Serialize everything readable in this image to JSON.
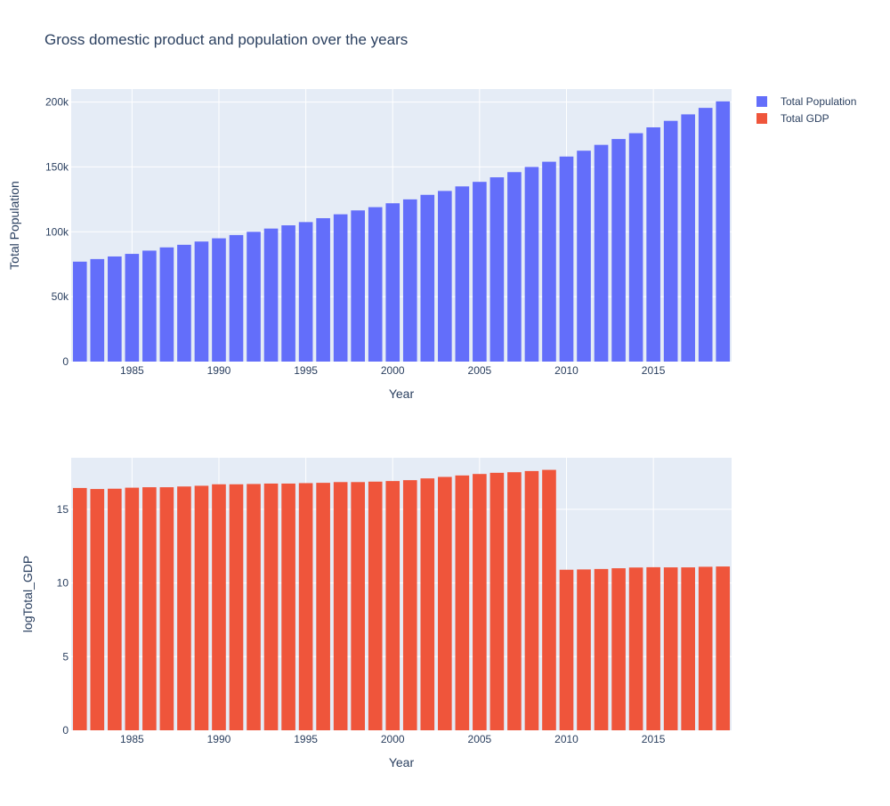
{
  "chart_data": [
    {
      "type": "bar",
      "title": "Gross domestic product and population over the years",
      "xlabel": "Year",
      "ylabel": "Total Population",
      "xlim": [
        1981.5,
        2019.5
      ],
      "ylim": [
        0,
        210000
      ],
      "x_ticks": [
        "1985",
        "1990",
        "1995",
        "2000",
        "2005",
        "2010",
        "2015"
      ],
      "y_ticks": [
        "0",
        "50k",
        "100k",
        "150k",
        "200k"
      ],
      "grid": true,
      "legend_position": "top-right",
      "series": [
        {
          "name": "Total Population",
          "color": "#636efa",
          "x": [
            1982,
            1983,
            1984,
            1985,
            1986,
            1987,
            1988,
            1989,
            1990,
            1991,
            1992,
            1993,
            1994,
            1995,
            1996,
            1997,
            1998,
            1999,
            2000,
            2001,
            2002,
            2003,
            2004,
            2005,
            2006,
            2007,
            2008,
            2009,
            2010,
            2011,
            2012,
            2013,
            2014,
            2015,
            2016,
            2017,
            2018,
            2019
          ],
          "values": [
            77000,
            79000,
            81000,
            83000,
            85500,
            88000,
            90000,
            92500,
            95000,
            97500,
            100000,
            102500,
            105000,
            107500,
            110500,
            113500,
            116500,
            119000,
            122000,
            125000,
            128500,
            131500,
            135000,
            138500,
            142000,
            146000,
            150000,
            154000,
            158000,
            162500,
            167000,
            171500,
            176000,
            180500,
            185500,
            190500,
            195500,
            200500
          ]
        }
      ]
    },
    {
      "type": "bar",
      "title": "",
      "xlabel": "Year",
      "ylabel": "logTotal_GDP",
      "xlim": [
        1981.5,
        2019.5
      ],
      "ylim": [
        0,
        18.5
      ],
      "x_ticks": [
        "1985",
        "1990",
        "1995",
        "2000",
        "2005",
        "2010",
        "2015"
      ],
      "y_ticks": [
        "0",
        "5",
        "10",
        "15"
      ],
      "grid": true,
      "series": [
        {
          "name": "Total GDP",
          "color": "#ef553b",
          "x": [
            1982,
            1983,
            1984,
            1985,
            1986,
            1987,
            1988,
            1989,
            1990,
            1991,
            1992,
            1993,
            1994,
            1995,
            1996,
            1997,
            1998,
            1999,
            2000,
            2001,
            2002,
            2003,
            2004,
            2005,
            2006,
            2007,
            2008,
            2009,
            2010,
            2011,
            2012,
            2013,
            2014,
            2015,
            2016,
            2017,
            2018,
            2019
          ],
          "values": [
            16.45,
            16.38,
            16.4,
            16.47,
            16.5,
            16.5,
            16.55,
            16.6,
            16.7,
            16.7,
            16.72,
            16.75,
            16.75,
            16.78,
            16.8,
            16.85,
            16.85,
            16.88,
            16.92,
            16.98,
            17.1,
            17.2,
            17.3,
            17.4,
            17.48,
            17.52,
            17.6,
            17.68,
            10.9,
            10.92,
            10.95,
            11.0,
            11.05,
            11.07,
            11.06,
            11.06,
            11.1,
            11.12
          ]
        }
      ]
    }
  ]
}
